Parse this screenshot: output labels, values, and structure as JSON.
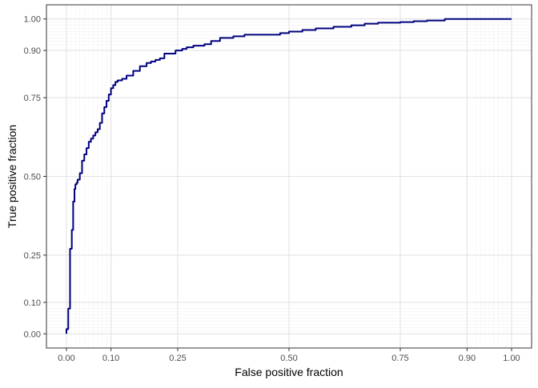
{
  "chart_data": {
    "type": "line",
    "title": "",
    "xlabel": "False positive fraction",
    "ylabel": "True positive fraction",
    "xlim": [
      -0.045,
      1.045
    ],
    "ylim": [
      -0.045,
      1.045
    ],
    "x_ticks": [
      0,
      0.1,
      0.25,
      0.5,
      0.75,
      0.9,
      1
    ],
    "x_tick_labels": [
      "0.00",
      "0.10",
      "0.25",
      "0.50",
      "0.75",
      "0.90",
      "1.00"
    ],
    "y_ticks": [
      0,
      0.1,
      0.25,
      0.5,
      0.75,
      0.9,
      1
    ],
    "y_tick_labels": [
      "0.00",
      "0.10",
      "0.25",
      "0.50",
      "0.75",
      "0.90",
      "1.00"
    ],
    "minor_ticks": [
      0.01,
      0.02,
      0.03,
      0.04,
      0.05,
      0.06,
      0.07,
      0.08,
      0.09,
      0.92,
      0.93,
      0.94,
      0.95,
      0.96,
      0.97,
      0.98,
      0.99
    ],
    "grid": true,
    "colors": {
      "line": "#00007F",
      "grid_major": "#E3E3E3",
      "grid_minor": "#F2F2F2",
      "panel_border": "#333333",
      "tick_label": "#4D4D4D"
    },
    "series": [
      {
        "x": [
          0.0,
          0.0,
          0.004,
          0.004,
          0.008,
          0.008,
          0.012,
          0.012,
          0.015,
          0.015,
          0.018,
          0.018,
          0.02,
          0.02,
          0.023,
          0.023,
          0.025,
          0.025,
          0.03,
          0.03,
          0.035,
          0.035,
          0.04,
          0.04,
          0.045,
          0.045,
          0.05,
          0.05,
          0.055,
          0.055,
          0.06,
          0.06,
          0.065,
          0.065,
          0.07,
          0.07,
          0.075,
          0.075,
          0.08,
          0.08,
          0.085,
          0.085,
          0.09,
          0.09,
          0.095,
          0.095,
          0.1,
          0.1,
          0.105,
          0.105,
          0.11,
          0.11,
          0.115,
          0.115,
          0.125,
          0.125,
          0.135,
          0.135,
          0.15,
          0.15,
          0.165,
          0.165,
          0.18,
          0.18,
          0.19,
          0.19,
          0.2,
          0.2,
          0.21,
          0.21,
          0.22,
          0.22,
          0.245,
          0.245,
          0.26,
          0.26,
          0.27,
          0.27,
          0.285,
          0.285,
          0.31,
          0.31,
          0.325,
          0.325,
          0.345,
          0.345,
          0.375,
          0.375,
          0.4,
          0.4,
          0.48,
          0.48,
          0.5,
          0.5,
          0.53,
          0.53,
          0.56,
          0.56,
          0.6,
          0.6,
          0.64,
          0.64,
          0.67,
          0.67,
          0.7,
          0.7,
          0.75,
          0.75,
          0.78,
          0.78,
          0.81,
          0.81,
          0.85,
          0.85,
          0.88,
          1.0
        ],
        "y": [
          0.0,
          0.015,
          0.015,
          0.08,
          0.08,
          0.27,
          0.27,
          0.33,
          0.33,
          0.42,
          0.42,
          0.46,
          0.46,
          0.475,
          0.475,
          0.48,
          0.48,
          0.49,
          0.49,
          0.51,
          0.51,
          0.55,
          0.55,
          0.57,
          0.57,
          0.59,
          0.59,
          0.61,
          0.61,
          0.62,
          0.62,
          0.63,
          0.63,
          0.64,
          0.64,
          0.65,
          0.65,
          0.67,
          0.67,
          0.7,
          0.7,
          0.72,
          0.72,
          0.74,
          0.74,
          0.76,
          0.76,
          0.78,
          0.78,
          0.79,
          0.79,
          0.8,
          0.8,
          0.805,
          0.805,
          0.81,
          0.81,
          0.82,
          0.82,
          0.835,
          0.835,
          0.85,
          0.85,
          0.86,
          0.86,
          0.865,
          0.865,
          0.87,
          0.87,
          0.875,
          0.875,
          0.89,
          0.89,
          0.9,
          0.9,
          0.905,
          0.905,
          0.91,
          0.91,
          0.915,
          0.915,
          0.92,
          0.92,
          0.93,
          0.93,
          0.94,
          0.94,
          0.945,
          0.945,
          0.95,
          0.95,
          0.955,
          0.955,
          0.96,
          0.96,
          0.965,
          0.965,
          0.97,
          0.97,
          0.975,
          0.975,
          0.98,
          0.98,
          0.985,
          0.985,
          0.988,
          0.988,
          0.99,
          0.99,
          0.993,
          0.993,
          0.995,
          0.995,
          1.0,
          1.0,
          1.0
        ]
      }
    ]
  }
}
